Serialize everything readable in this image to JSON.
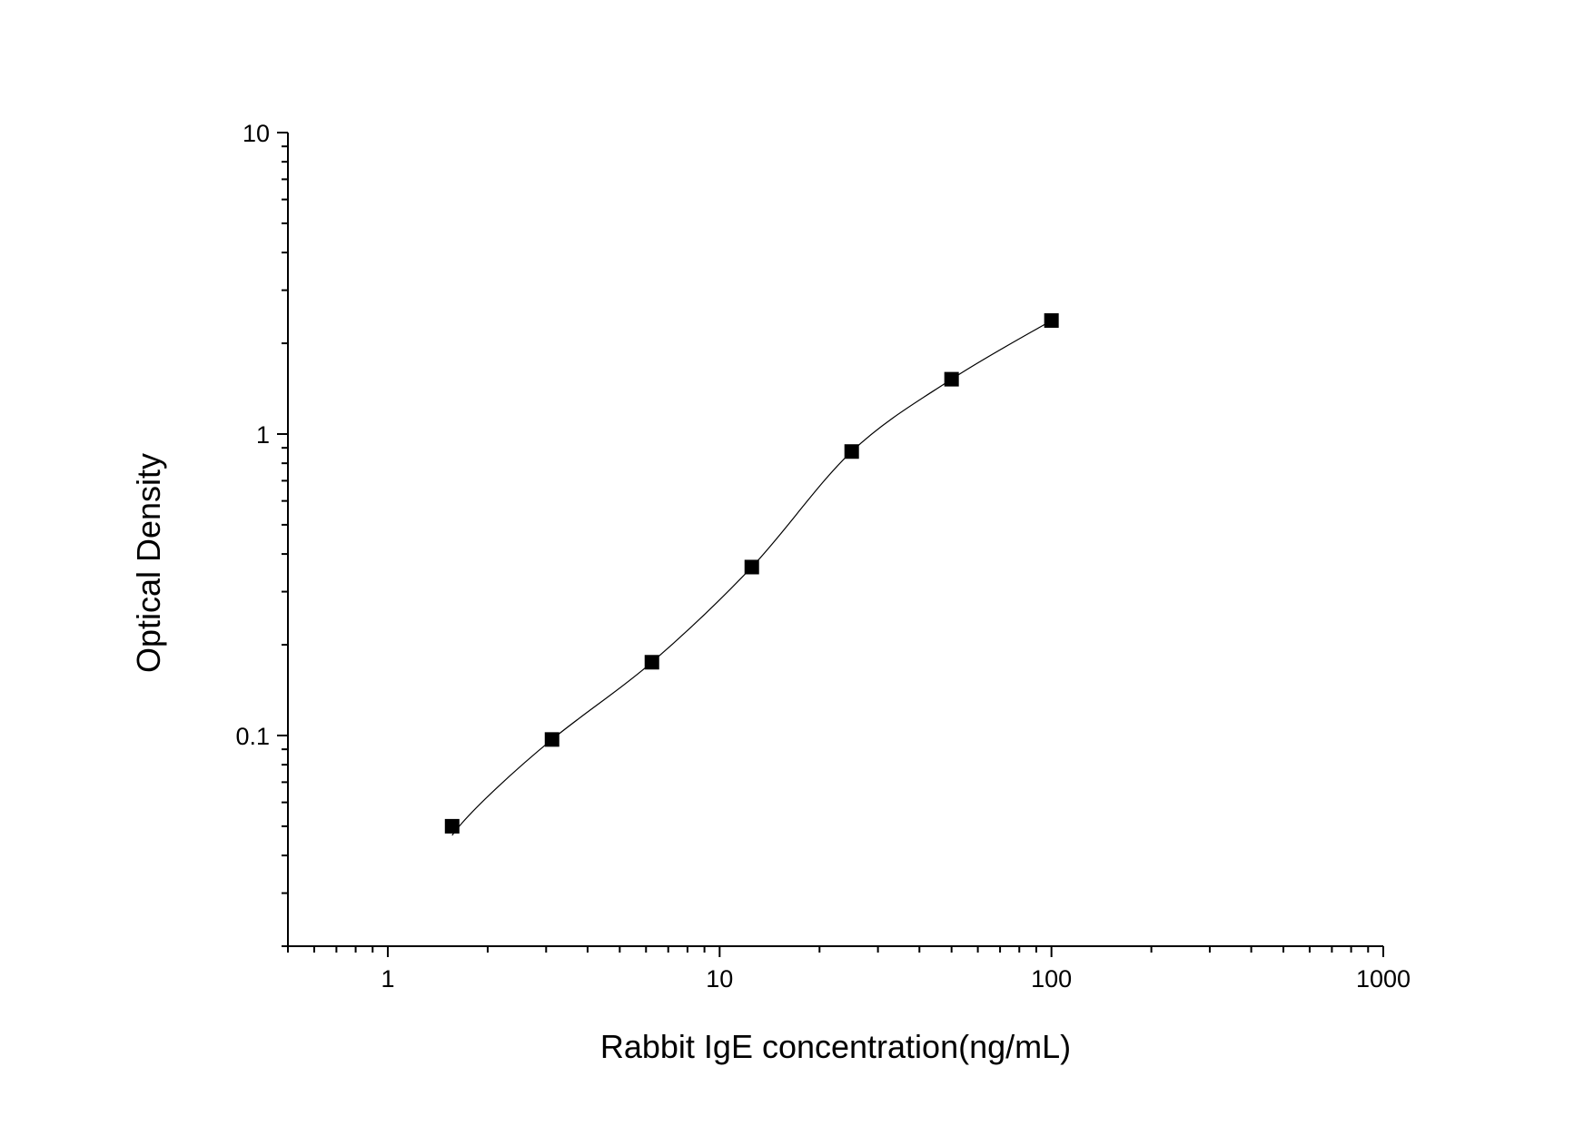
{
  "chart_data": {
    "type": "scatter",
    "title": "",
    "xlabel": "Rabbit IgE concentration(ng/mL)",
    "ylabel": "Optical Density",
    "xscale": "log",
    "yscale": "log",
    "xlim": [
      0.5,
      1000
    ],
    "ylim": [
      0.02,
      10
    ],
    "xticks": [
      1,
      10,
      100,
      1000
    ],
    "xtick_labels": [
      "1",
      "10",
      "100",
      "1000"
    ],
    "yticks": [
      0.1,
      1,
      10
    ],
    "ytick_labels": [
      "0.1",
      "1",
      "10"
    ],
    "grid": false,
    "legend": "none",
    "marker": "square",
    "color": "#000000",
    "fit_curve": true,
    "series": [
      {
        "x": [
          1.5625,
          3.125,
          6.25,
          12.5,
          25,
          50,
          100
        ],
        "y": [
          0.05,
          0.097,
          0.175,
          0.362,
          0.875,
          1.52,
          2.38
        ]
      }
    ]
  }
}
